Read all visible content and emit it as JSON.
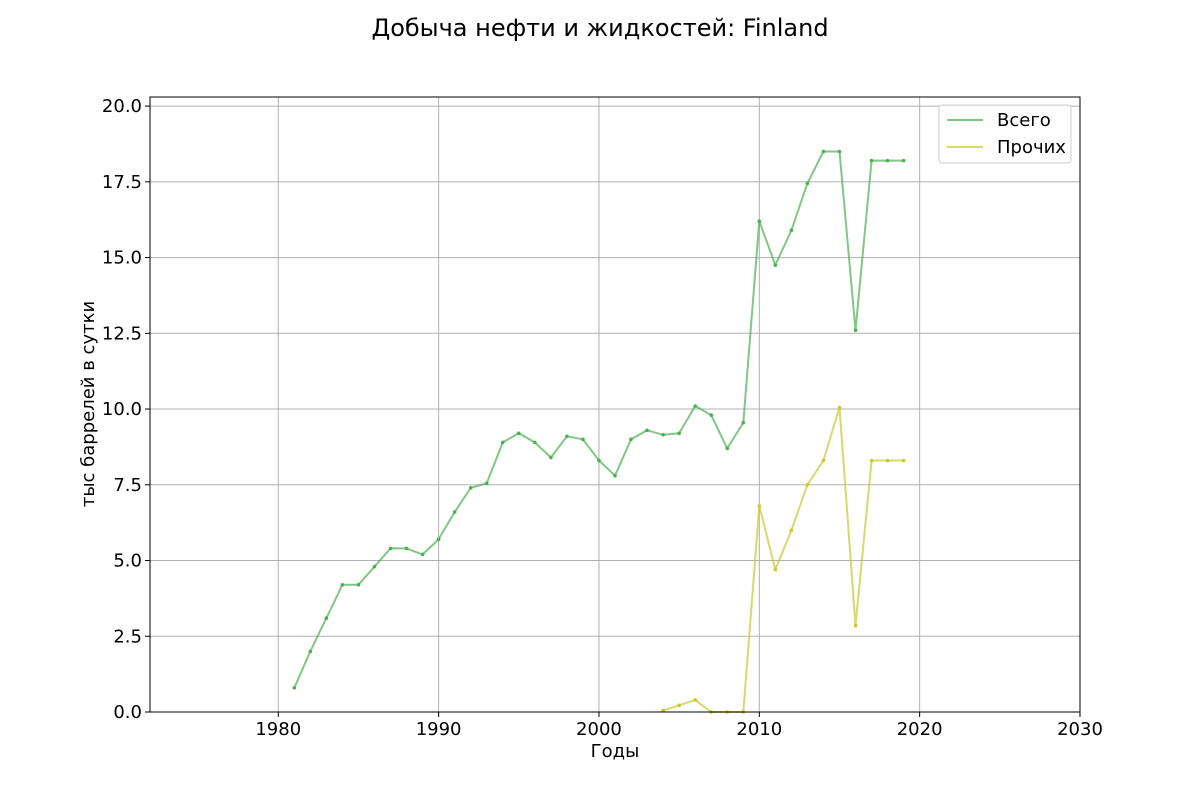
{
  "chart_data": {
    "type": "line",
    "title": "Добыча нефти и жидкостей: Finland",
    "xlabel": "Годы",
    "ylabel": "тыс баррелей в сутки",
    "xlim": [
      1972,
      2030
    ],
    "ylim": [
      0,
      20.3
    ],
    "xticks": [
      1980,
      1990,
      2000,
      2010,
      2020,
      2030
    ],
    "yticks": [
      0,
      2.5,
      5,
      7.5,
      10,
      12.5,
      15,
      17.5,
      20
    ],
    "xtick_labels": [
      "1980",
      "1990",
      "2000",
      "2010",
      "2020",
      "2030"
    ],
    "ytick_labels": [
      "0.0",
      "2.5",
      "5.0",
      "7.5",
      "10.0",
      "12.5",
      "15.0",
      "17.5",
      "20.0"
    ],
    "grid": true,
    "legend": "top-right",
    "series": [
      {
        "name": "Всего",
        "color": "#4caf50",
        "x": [
          1981,
          1982,
          1983,
          1984,
          1985,
          1986,
          1987,
          1988,
          1989,
          1990,
          1991,
          1992,
          1993,
          1994,
          1995,
          1996,
          1997,
          1998,
          1999,
          2000,
          2001,
          2002,
          2003,
          2004,
          2005,
          2006,
          2007,
          2008,
          2009,
          2010,
          2011,
          2012,
          2013,
          2014,
          2015,
          2016,
          2017,
          2018,
          2019
        ],
        "y": [
          0.8,
          2.0,
          3.1,
          4.2,
          4.2,
          4.8,
          5.4,
          5.4,
          5.2,
          5.7,
          6.6,
          7.4,
          7.55,
          8.9,
          9.2,
          8.9,
          8.4,
          9.1,
          9.0,
          8.3,
          7.8,
          9.0,
          9.3,
          9.15,
          9.2,
          10.1,
          9.8,
          8.7,
          9.55,
          16.2,
          14.75,
          15.9,
          17.45,
          18.5,
          18.5,
          12.6,
          18.2,
          18.2,
          18.2
        ]
      },
      {
        "name": "Прочих",
        "color": "#c8c830",
        "x": [
          2004,
          2005,
          2006,
          2007,
          2008,
          2009,
          2010,
          2011,
          2012,
          2013,
          2014,
          2015,
          2016,
          2017,
          2018,
          2019
        ],
        "y": [
          0.05,
          0.22,
          0.4,
          0.0,
          0.0,
          0.0,
          6.8,
          4.7,
          6.0,
          7.5,
          8.3,
          10.05,
          2.85,
          8.3,
          8.3,
          8.3
        ]
      }
    ]
  }
}
